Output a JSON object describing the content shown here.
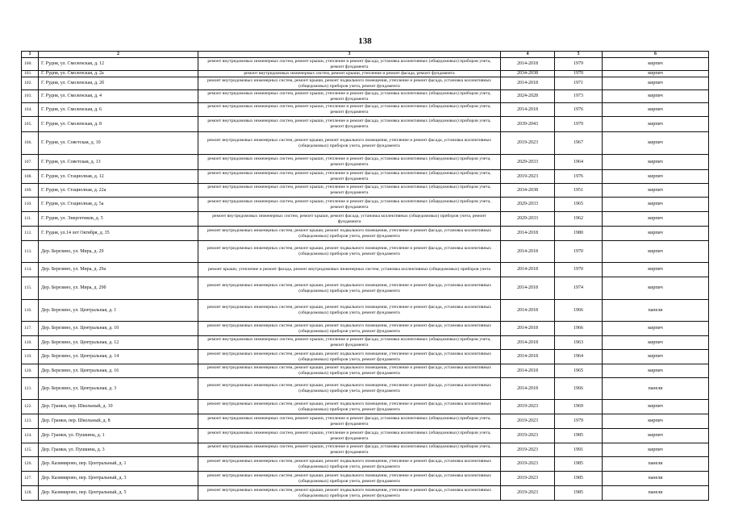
{
  "page_number": "138",
  "headers": [
    "1",
    "2",
    "3",
    "4",
    "5",
    "6"
  ],
  "rows": [
    {
      "n": "100.",
      "addr": "Г. Рудня, ул. Смоленская, д. 12",
      "desc": "ремонт внутридомовых инженерных систем, ремонт крыши, утепление и ремонт фасада, установка коллективных (общедомовых) приборов учета, ремонт фундамента",
      "period": "2014-2018",
      "year": "1979",
      "mat": "кирпич"
    },
    {
      "n": "101",
      "addr": "Г. Рудня, ул. Смоленская, д. 2а",
      "desc": "ремонт внутридомовых инженерных систем, ремонт крыши, утепление и ремонт фасада, ремонт фундамента",
      "period": "2034-2038",
      "year": "1970",
      "mat": "кирпич"
    },
    {
      "n": "102.",
      "addr": "Г. Рудня, ул. Смоленская, д. 2б",
      "desc": "ремонт внутридомовых инженерных систем, ремонт крыши, ремонт подвального помещения, утепление и ремонт фасада, установка коллективных (общедомовых) приборов учета, ремонт фундамента",
      "period": "2014-2018",
      "year": "1971",
      "mat": "кирпич"
    },
    {
      "n": "103.",
      "addr": "Г. Рудня, ул. Смоленская, д. 4",
      "desc": "ремонт внутридомовых инженерных систем, ремонт крыши, утепление и ремонт фасада, установка коллективных (общедомовых) приборов учета, ремонт фундамента",
      "period": "2024-2028",
      "year": "1973",
      "mat": "кирпич"
    },
    {
      "n": "104.",
      "addr": "Г. Рудня, ул. Смоленская, д. 6",
      "desc": "ремонт внутридомовых инженерных систем, ремонт крыши, утепление и ремонт фасада, установка коллективных (общедомовых) приборов учета, ремонт фундамента",
      "period": "2014-2018",
      "year": "1976",
      "mat": "кирпич"
    },
    {
      "n": "105.",
      "addr": "Г. Рудня, ул. Смоленская, д. 8",
      "desc": "ремонт внутридомовых инженерных систем, ремонт крыши, утепление и ремонт фасада, установка коллективных (общедомовых) приборов учета, ремонт фундамента",
      "period": "2039-2043",
      "year": "1979",
      "mat": "кирпич"
    },
    {
      "n": "106.",
      "addr": "Г. Рудня, ул. Советская, д. 10",
      "desc": "ремонт внутридомовых инженерных систем, ремонт крыши, ремонт подвального помещения, утепление и ремонт фасада, установка коллективных (общедомовых) приборов учета, ремонт фундамента",
      "period": "2019-2023",
      "year": "1967",
      "mat": "кирпич"
    },
    {
      "n": "107.",
      "addr": "Г. Рудня, ул. Советская, д. 13",
      "desc": "ремонт внутридомовых инженерных систем, ремонт крыши, утепление и ремонт фасада, установка коллективных (общедомовых) приборов учета, ремонт фундамента",
      "period": "2029-2033",
      "year": "1964",
      "mat": "кирпич"
    },
    {
      "n": "108.",
      "addr": "Г. Рудня, ул. Стациолная, д. 12",
      "desc": "ремонт внутридомовых инженерных систем, ремонт крыши, утепление и ремонт фасада, установка коллективных (общедомовых) приборов учета, ремонт фундамента",
      "period": "2019-2023",
      "year": "1976",
      "mat": "кирпич"
    },
    {
      "n": "109.",
      "addr": "Г. Рудня, ул. Стациолная, д. 22а",
      "desc": "ремонт внутридомовых инженерных систем, ремонт крыши, утепление и ремонт фасада, установка коллективных (общедомовых) приборов учета, ремонт фундамента",
      "period": "2034-2038",
      "year": "1951",
      "mat": "кирпич"
    },
    {
      "n": "110.",
      "addr": "Г. Рудня, ул. Стациолная, д. 5а",
      "desc": "ремонт внутридомовых инженерных систем, ремонт крыши, утепление и ремонт фасада, установка коллективных (общедомовых) приборов учета, ремонт фундамента",
      "period": "2029-2033",
      "year": "1965",
      "mat": "кирпич"
    },
    {
      "n": "111.",
      "addr": "Г. Рудня, ул. Энергетиков, д. 5",
      "desc": "ремонт внутридомовых инженерных систем, ремонт крыши, ремонт фасада, установка коллективных (общедомовых) приборов учета, ремонт фундамента",
      "period": "2029-2033",
      "year": "1962",
      "mat": "кирпич"
    },
    {
      "n": "112.",
      "addr": "Г. Рудня, ул.14 лет Октября, д. 35",
      "desc": "ремонт внутридомовых инженерных систем, ремонт крыши, ремонт подвального помещения, утепление и ремонт фасада, установка коллективных (общедомовых) приборов учета, ремонт фундамента",
      "period": "2014-2018",
      "year": "1980",
      "mat": "кирпич"
    },
    {
      "n": "113.",
      "addr": "Дер. Березино, ул. Мира, д. 29",
      "desc": "ремонт внутридомовых инженерных систем, ремонт крыши, ремонт подвального помещения, утепление и ремонт фасада, установка коллективных (общедомовых) приборов учета, ремонт фундамента",
      "period": "2014-2018",
      "year": "1970",
      "mat": "кирпич"
    },
    {
      "n": "114.",
      "addr": "Дер. Березино, ул. Мира, д. 29а",
      "desc": "ремонт крыши, утепление и ремонт фасада, ремонт внутридомовых инженерных систем, установка коллективных (общедомовых) приборов учета",
      "period": "2014-2018",
      "year": "1970",
      "mat": "кирпич"
    },
    {
      "n": "115.",
      "addr": "Дер. Березино, ул. Мира, д. 29б",
      "desc": "ремонт внутридомовых инженерных систем, ремонт крыши, ремонт подвального помещения, утепление и ремонт фасада, установка коллективных (общедомовых) приборов учета, ремонт фундамента",
      "period": "2014-2018",
      "year": "1974",
      "mat": "кирпич"
    },
    {
      "n": "116.",
      "addr": "Дер. Березино, ул. Центральная, д. 1",
      "desc": "ремонт внутридомовых инженерных систем, ремонт крыши, ремонт подвального помещения, утепление и ремонт фасада, установка коллективных (общедомовых) приборов учета, ремонт фундамента",
      "period": "2014-2018",
      "year": "1966",
      "mat": "панели"
    },
    {
      "n": "117.",
      "addr": "Дер. Березино, ул. Центральная, д. 10",
      "desc": "ремонт внутридомовых инженерных систем, ремонт крыши, ремонт подвального помещения, утепление и ремонт фасада, установка коллективных (общедомовых) приборов учета, ремонт фундамента",
      "period": "2014-2018",
      "year": "1966",
      "mat": "кирпич"
    },
    {
      "n": "118.",
      "addr": "Дер. Березино, ул. Центральная, д. 12",
      "desc": "ремонт внутридомовых инженерных систем, ремонт крыши, утепление и ремонт фасада, установка коллективных (общедомовых) приборов учета, ремонт фундамента",
      "period": "2014-2018",
      "year": "1963",
      "mat": "кирпич"
    },
    {
      "n": "119.",
      "addr": "Дер. Березино, ул. Центральная, д. 14",
      "desc": "ремонт внутридомовых инженерных систем, ремонт крыши, ремонт подвального помещения, утепление и ремонт фасада, установка коллективных (общедомовых) приборов учета, ремонт фундамента",
      "period": "2014-2018",
      "year": "1964",
      "mat": "кирпич"
    },
    {
      "n": "120.",
      "addr": "Дер. Березино, ул. Центральная, д. 16",
      "desc": "ремонт внутридомовых инженерных систем, ремонт крыши, ремонт подвального помещения, утепление и ремонт фасада, установка коллективных (общедомовых) приборов учета, ремонт фундамента",
      "period": "2014-2018",
      "year": "1965",
      "mat": "кирпич"
    },
    {
      "n": "121.",
      "addr": "Дер. Березино, ул. Центральная, д. 3",
      "desc": "ремонт внутридомовых инженерных систем, ремонт крыши, ремонт подвального помещения, утепление и ремонт фасада, установка коллективных (общедомовых) приборов учета, ремонт фундамента",
      "period": "2014-2018",
      "year": "1966",
      "mat": "панели"
    },
    {
      "n": "122.",
      "addr": "Дер. Гранки, пер. Школьный, д. 10",
      "desc": "ремонт внутридомовых инженерных систем, ремонт крыши, ремонт подвального помещения, утепление и ремонт фасада, установка коллективных (общедомовых) приборов учета, ремонт фундамента",
      "period": "2019-2023",
      "year": "1969",
      "mat": "кирпич"
    },
    {
      "n": "123.",
      "addr": "Дер. Гранки, пер. Школьный, д. 8",
      "desc": "ремонт внутридомовых инженерных систем, ремонт крыши, утепление и ремонт фасада, установка коллективных (общедомовых) приборов учета, ремонт фундамента",
      "period": "2019-2023",
      "year": "1979",
      "mat": "кирпич"
    },
    {
      "n": "124.",
      "addr": "Дер. Гранки, ул. Пушкина, д. 1",
      "desc": "ремонт внутридомовых инженерных систем, ремонт крыши, утепление и ремонт фасада, установка коллективных (общедомовых) приборов учета, ремонт фундамента",
      "period": "2019-2023",
      "year": "1985",
      "mat": "кирпич"
    },
    {
      "n": "125.",
      "addr": "Дер. Гранки, ул. Пушкина, д. 3",
      "desc": "ремонт внутридомовых инженерных систем, ремонт крыши, утепление и ремонт фасада, установка коллективных (общедомовых) приборов учета, ремонт фундамента",
      "period": "2019-2023",
      "year": "1991",
      "mat": "кирпич"
    },
    {
      "n": "126.",
      "addr": "Дер. Казимирово, пер. Центральный, д. 1",
      "desc": "ремонт внутридомовых инженерных систем, ремонт крыши, ремонт подвального помещения, утепление и ремонт фасада, установка коллективных (общедомовых) приборов учета, ремонт фундамента",
      "period": "2019-2023",
      "year": "1985",
      "mat": "панели"
    },
    {
      "n": "127.",
      "addr": "Дер. Казимирово, пер. Центральный, д. 3",
      "desc": "ремонт внутридомовых инженерных систем, ремонт крыши, ремонт подвального помещения, утепление и ремонт фасада, установка коллективных (общедомовых) приборов учета, ремонт фундамента",
      "period": "2019-2023",
      "year": "1985",
      "mat": "панели"
    },
    {
      "n": "128.",
      "addr": "Дер. Казимирово, пер. Центральный, д. 5",
      "desc": "ремонт внутридомовых инженерных систем, ремонт крыши, ремонт подвального помещения, утепление и ремонт фасада, установка коллективных (общедомовых) приборов учета, ремонт фундамента",
      "period": "2019-2023",
      "year": "1985",
      "mat": "панели"
    }
  ]
}
